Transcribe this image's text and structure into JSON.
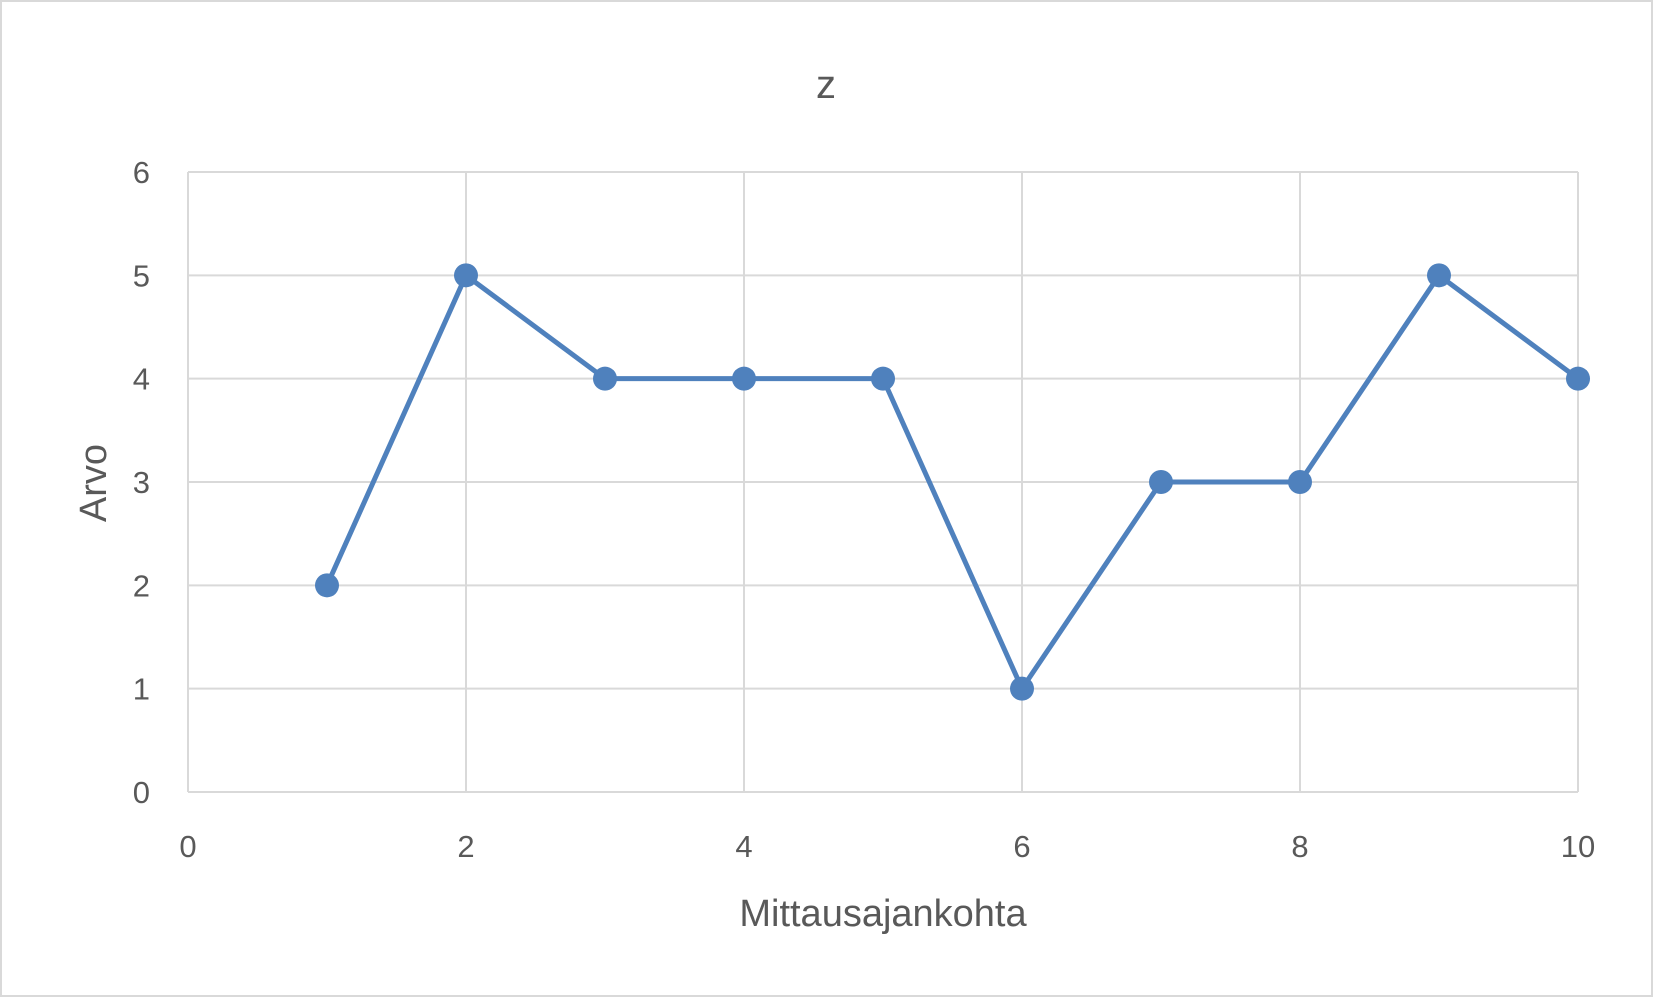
{
  "chart_data": {
    "type": "scatter",
    "title": "z",
    "xlabel": "Mittausajankohta",
    "ylabel": "Arvo",
    "xlim": [
      0,
      10
    ],
    "ylim": [
      0,
      6
    ],
    "x_ticks": [
      0,
      2,
      4,
      6,
      8,
      10
    ],
    "y_ticks": [
      0,
      1,
      2,
      3,
      4,
      5,
      6
    ],
    "grid": true,
    "legend": "none",
    "series": [
      {
        "x": [
          1,
          2,
          3,
          4,
          5,
          6,
          7,
          8,
          9,
          10
        ],
        "y": [
          2,
          5,
          4,
          4,
          4,
          1,
          3,
          3,
          5,
          4
        ],
        "color": "#4f81bd",
        "markers": true,
        "lines": true
      }
    ]
  }
}
